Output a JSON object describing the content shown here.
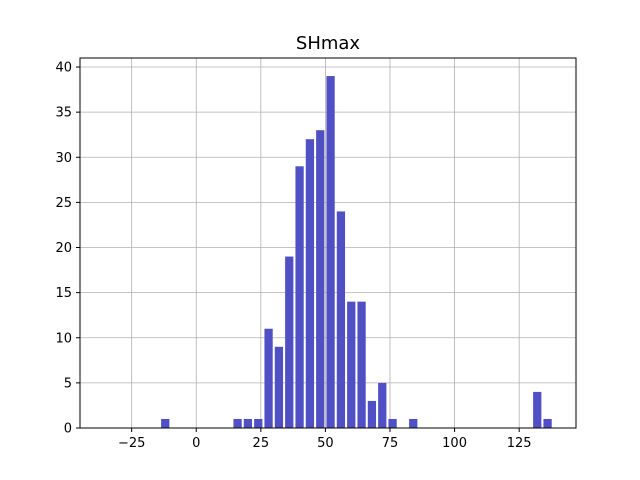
{
  "chart_data": {
    "type": "bar",
    "title": "SHmax",
    "xlabel": "",
    "ylabel": "",
    "xlim": [
      -45,
      147
    ],
    "ylim": [
      0,
      41
    ],
    "grid": true,
    "bar_color": "#5050c4",
    "bin_width": 4,
    "bars": [
      {
        "x": -12,
        "value": 1
      },
      {
        "x": 16,
        "value": 1
      },
      {
        "x": 20,
        "value": 1
      },
      {
        "x": 24,
        "value": 1
      },
      {
        "x": 28,
        "value": 11
      },
      {
        "x": 32,
        "value": 9
      },
      {
        "x": 36,
        "value": 19
      },
      {
        "x": 40,
        "value": 29
      },
      {
        "x": 44,
        "value": 32
      },
      {
        "x": 48,
        "value": 33
      },
      {
        "x": 52,
        "value": 39
      },
      {
        "x": 56,
        "value": 24
      },
      {
        "x": 60,
        "value": 14
      },
      {
        "x": 64,
        "value": 14
      },
      {
        "x": 68,
        "value": 3
      },
      {
        "x": 72,
        "value": 5
      },
      {
        "x": 76,
        "value": 1
      },
      {
        "x": 84,
        "value": 1
      },
      {
        "x": 132,
        "value": 4
      },
      {
        "x": 136,
        "value": 1
      }
    ],
    "x_ticks": [
      {
        "value": -25,
        "label": "−25"
      },
      {
        "value": 0,
        "label": "0"
      },
      {
        "value": 25,
        "label": "25"
      },
      {
        "value": 50,
        "label": "50"
      },
      {
        "value": 75,
        "label": "75"
      },
      {
        "value": 100,
        "label": "100"
      },
      {
        "value": 125,
        "label": "125"
      }
    ],
    "y_ticks": [
      {
        "value": 0,
        "label": "0"
      },
      {
        "value": 5,
        "label": "5"
      },
      {
        "value": 10,
        "label": "10"
      },
      {
        "value": 15,
        "label": "15"
      },
      {
        "value": 20,
        "label": "20"
      },
      {
        "value": 25,
        "label": "25"
      },
      {
        "value": 30,
        "label": "30"
      },
      {
        "value": 35,
        "label": "35"
      },
      {
        "value": 40,
        "label": "40"
      }
    ]
  }
}
